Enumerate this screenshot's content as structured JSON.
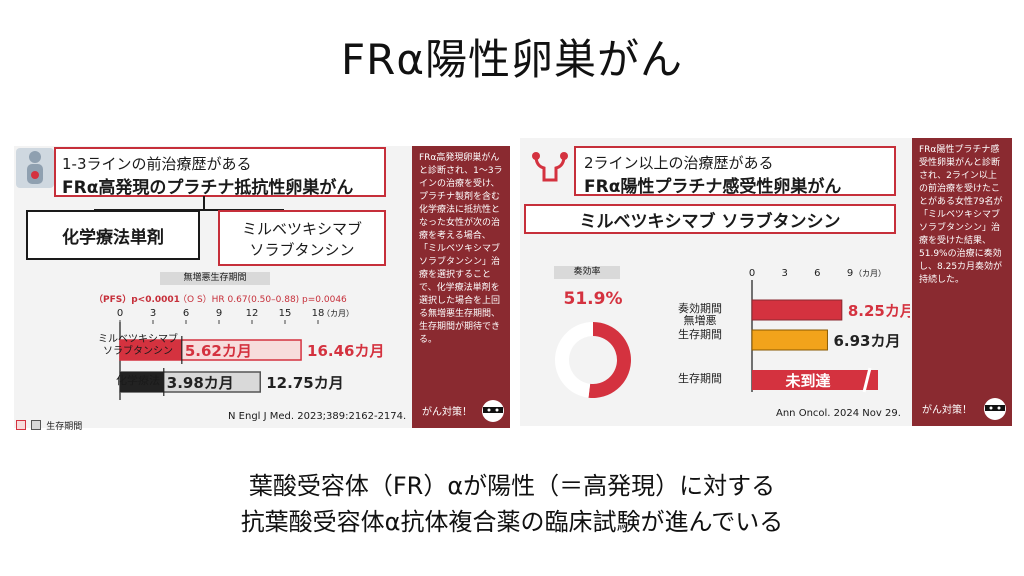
{
  "title": "FRα陽性卵巣がん",
  "left": {
    "header_line1": "1-3ラインの前治療歴がある",
    "header_line2": "FRα高発現のプラチナ抵抗性卵巣がん",
    "box_chemo": "化学療法単剤",
    "box_mirv_line1": "ミルベツキシマブ",
    "box_mirv_line2": "ソラブタンシン",
    "pfs_label": "無増悪生存期間",
    "stats_pfs": "（PFS）p<0.0001",
    "stats_os": "（O S）HR 0.67(0.50–0.88) p=0.0046",
    "unit": "（カ月）",
    "row1_label_line1": "ミルベツキシマブ",
    "row1_label_line2": "ソラブタンシン",
    "row2_label": "化学療法",
    "legend": "生存期間",
    "citation": "N Engl J Med. 2023;389:2162-2174.",
    "note": "FRα高発現卵巣がんと診断され、1～3ラインの治療を受け、プラチナ製剤を含む化学療法に抵抗性となった女性が次の治療を考える場合、「ミルベツキシマブ ソラブタンシン」治療を選択することで、化学療法単剤を選択した場合を上回る無増悪生存期間、生存期間が期待できる。",
    "note_footer": "がん対策！"
  },
  "right": {
    "header_line1": "2ライン以上の治療歴がある",
    "header_line2": "FRα陽性プラチナ感受性卵巣がん",
    "drug": "ミルベツキシマブ ソラブタンシン",
    "orr_label": "奏効率",
    "unit": "（カ月）",
    "citation": "Ann Oncol. 2024 Nov 29.",
    "note": "FRα陽性プラチナ感受性卵巣がんと診断され、2ライン以上の前治療を受けたことがある女性79名が「ミルベツキシマブ ソラブタンシン」治療を受けた結果、51.9%の治療に奏効し、8.25カ月奏効が持続した。",
    "note_footer": "がん対策！"
  },
  "caption_line1": "葉酸受容体（FR）αが陽性（＝高発現）に対する",
  "caption_line2": "抗葉酸受容体α抗体複合薬の臨床試験が進んでいる",
  "colors": {
    "red": "#d4323f",
    "pink": "#f7dcdc",
    "black": "#222222",
    "gray": "#d9d9d9",
    "orange": "#f2a31b",
    "maroon": "#8a2a30"
  },
  "chart_data": [
    {
      "type": "bar",
      "orientation": "horizontal",
      "categories": [
        "ミルベツキシマブ ソラブタンシン",
        "化学療法"
      ],
      "xlim": [
        0,
        18
      ],
      "xticks": [
        0,
        3,
        6,
        9,
        12,
        15,
        18
      ],
      "series": [
        {
          "name": "無増悪生存期間",
          "values": [
            5.62,
            3.98
          ],
          "labels": [
            "5.62カ月",
            "3.98カ月"
          ]
        },
        {
          "name": "生存期間",
          "values": [
            16.46,
            12.75
          ],
          "labels": [
            "16.46カ月",
            "12.75カ月"
          ]
        }
      ]
    },
    {
      "type": "pie",
      "values": [
        51.9,
        48.1
      ],
      "labels": [
        "51.9%",
        ""
      ]
    },
    {
      "type": "bar",
      "orientation": "horizontal",
      "categories": [
        "奏効期間",
        "無増悪 生存期間",
        "生存期間"
      ],
      "xlim": [
        0,
        9
      ],
      "xticks": [
        0,
        3,
        6,
        9
      ],
      "values": [
        8.25,
        6.93,
        null
      ],
      "labels": [
        "8.25カ月",
        "6.93カ月",
        "未到達"
      ]
    }
  ]
}
